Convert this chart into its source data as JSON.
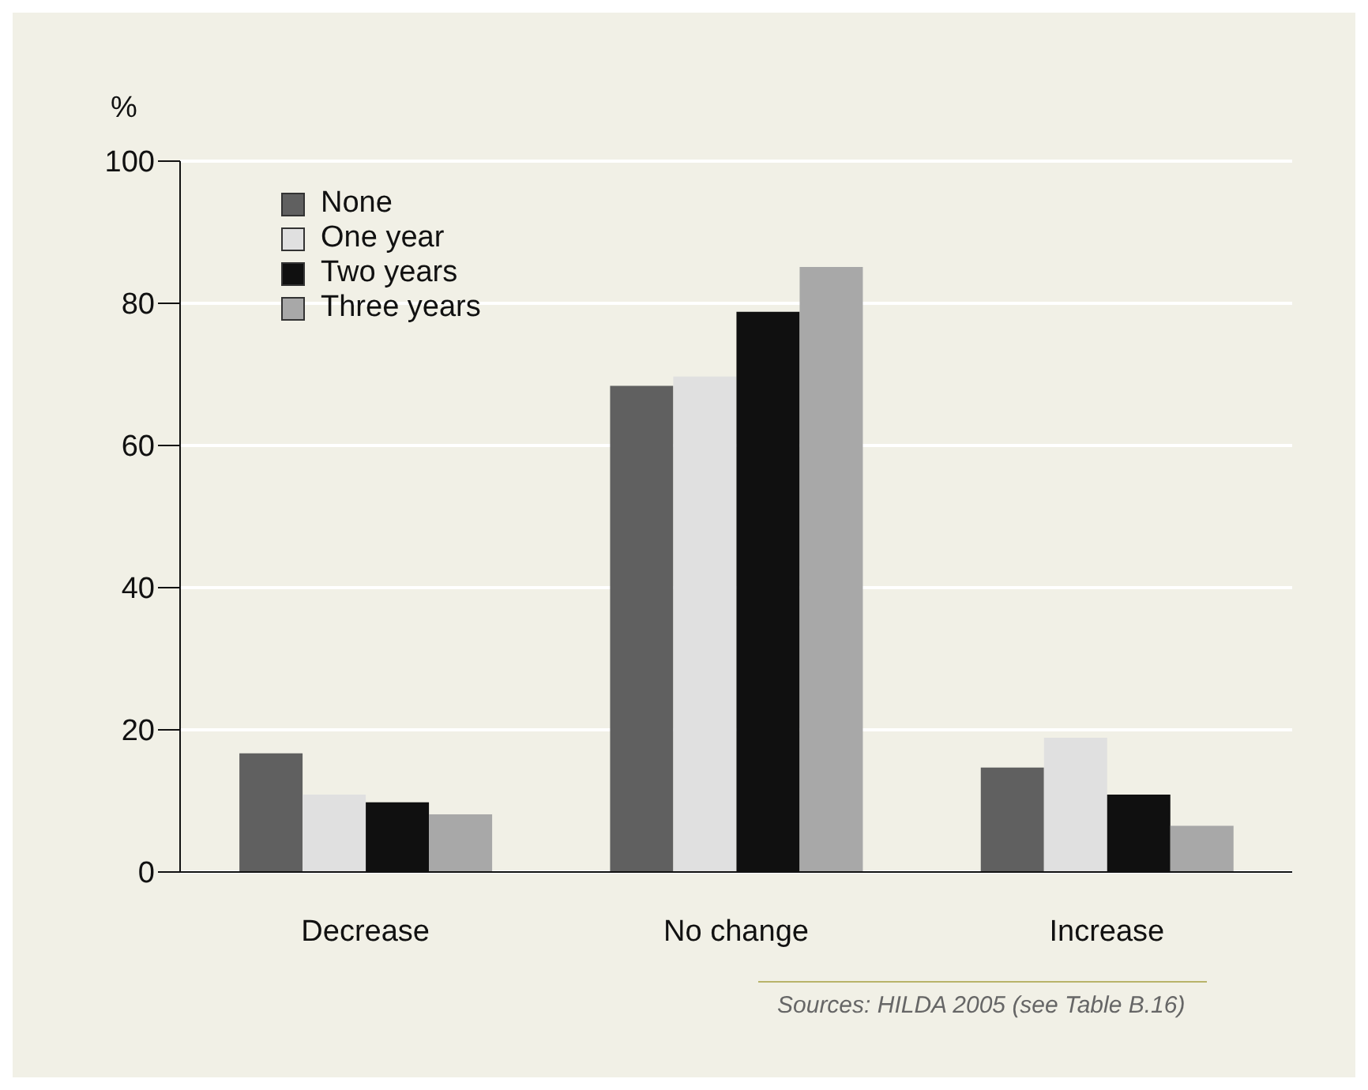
{
  "chart_data": {
    "type": "bar",
    "ylabel": "%",
    "categories": [
      "Decrease",
      "No change",
      "Increase"
    ],
    "series": [
      {
        "name": "None",
        "color": "#606060",
        "values": [
          16.7,
          68.4,
          14.7
        ]
      },
      {
        "name": "One year",
        "color": "#e0e0e0",
        "values": [
          10.9,
          69.7,
          18.9
        ]
      },
      {
        "name": "Two years",
        "color": "#101010",
        "values": [
          9.8,
          78.8,
          10.9
        ]
      },
      {
        "name": "Three years",
        "color": "#a8a8a8",
        "values": [
          8.1,
          85.1,
          6.5
        ]
      }
    ],
    "ylim": [
      0,
      100
    ],
    "yticks": [
      0,
      20,
      40,
      60,
      80,
      100
    ],
    "grid": "y",
    "legend": "top left",
    "annotations": [
      "Sources: HILDA 2005  (see Table B.16)"
    ]
  }
}
